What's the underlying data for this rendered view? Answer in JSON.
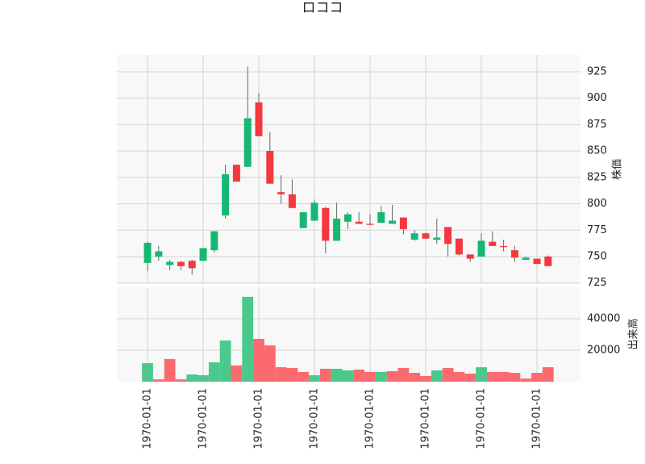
{
  "chart_data": [
    {
      "type": "candlestick",
      "title": "ロココ",
      "ylabel": "株価",
      "categories": [
        "1970-01-01",
        null,
        null,
        null,
        null,
        "1970-01-01",
        null,
        null,
        null,
        null,
        "1970-01-01",
        null,
        null,
        null,
        null,
        "1970-01-01",
        null,
        null,
        null,
        null,
        "1970-01-01",
        null,
        null,
        null,
        null,
        "1970-01-01",
        null,
        null,
        null,
        null,
        "1970-01-01",
        null,
        null,
        null,
        null,
        "1970-01-01",
        null
      ],
      "open": [
        744,
        750,
        742,
        745,
        746,
        746,
        756,
        789,
        837,
        835,
        896,
        850,
        811,
        809,
        777,
        784,
        796,
        765,
        783,
        783,
        781,
        782,
        781,
        787,
        766,
        772,
        766,
        778,
        767,
        752,
        750,
        764,
        760,
        756,
        747,
        748,
        750
      ],
      "high": [
        764,
        760,
        747,
        746,
        747,
        758,
        774,
        837,
        837,
        930,
        905,
        868,
        827,
        823,
        792,
        804,
        797,
        801,
        792,
        792,
        790,
        798,
        799,
        787,
        775,
        773,
        786,
        778,
        767,
        752,
        772,
        774,
        766,
        760,
        750,
        748,
        751
      ],
      "low": [
        736,
        746,
        737,
        737,
        733,
        746,
        754,
        786,
        821,
        835,
        864,
        819,
        800,
        796,
        777,
        784,
        753,
        765,
        776,
        781,
        780,
        782,
        781,
        771,
        765,
        767,
        762,
        750,
        751,
        745,
        750,
        760,
        755,
        745,
        747,
        743,
        741
      ],
      "close": [
        763,
        755,
        745,
        741,
        739,
        758,
        774,
        828,
        821,
        881,
        864,
        819,
        809,
        796,
        792,
        801,
        765,
        786,
        790,
        781,
        780,
        792,
        784,
        776,
        772,
        767,
        768,
        762,
        752,
        748,
        765,
        760,
        759,
        749,
        749,
        743,
        741
      ],
      "up_color": "#16b773",
      "down_color": "#f5373f",
      "ylim": [
        724,
        941
      ],
      "yticks": [
        725,
        750,
        775,
        800,
        825,
        850,
        875,
        900,
        925
      ],
      "grid": true
    },
    {
      "type": "bar",
      "ylabel": "出来高",
      "values": [
        11800,
        1500,
        14400,
        1500,
        4600,
        4100,
        12300,
        26200,
        10300,
        53900,
        27200,
        23100,
        9200,
        8700,
        6200,
        4100,
        8200,
        8200,
        7200,
        7700,
        6200,
        6200,
        6700,
        8700,
        5600,
        3600,
        7200,
        8700,
        6200,
        5100,
        9200,
        6200,
        6200,
        5600,
        2000,
        5600,
        9200
      ],
      "colors": [
        "#4bc98d",
        "#fb6a6e",
        "#fb6a6e",
        "#fb6a6e",
        "#4bc98d",
        "#4bc98d",
        "#4bc98d",
        "#4bc98d",
        "#fb6a6e",
        "#4bc98d",
        "#fb6a6e",
        "#fb6a6e",
        "#fb6a6e",
        "#fb6a6e",
        "#fb6a6e",
        "#4bc98d",
        "#fb6a6e",
        "#4bc98d",
        "#4bc98d",
        "#fb6a6e",
        "#fb6a6e",
        "#4bc98d",
        "#fb6a6e",
        "#fb6a6e",
        "#fb6a6e",
        "#fb6a6e",
        "#4bc98d",
        "#fb6a6e",
        "#fb6a6e",
        "#fb6a6e",
        "#4bc98d",
        "#fb6a6e",
        "#fb6a6e",
        "#fb6a6e",
        "#fb6a6e",
        "#fb6a6e",
        "#fb6a6e"
      ],
      "ylim": [
        0,
        60000
      ],
      "yticks": [
        20000,
        40000
      ],
      "grid": true
    }
  ]
}
